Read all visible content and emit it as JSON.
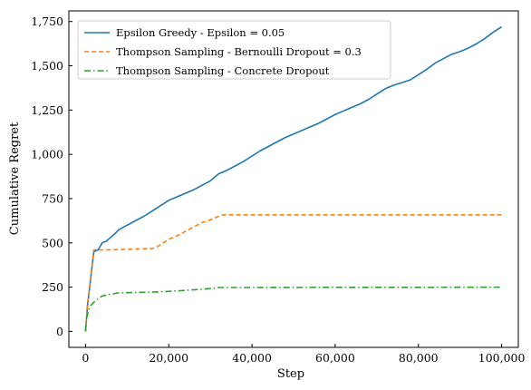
{
  "chart_data": {
    "type": "line",
    "title": "",
    "xlabel": "Step",
    "ylabel": "Cumulative Regret",
    "xlim": [
      -4000,
      104000
    ],
    "ylim": [
      -90,
      1810
    ],
    "xticks": [
      0,
      20000,
      40000,
      60000,
      80000,
      100000
    ],
    "xtick_labels": [
      "0",
      "20,000",
      "40,000",
      "60,000",
      "80,000",
      "100,000"
    ],
    "yticks": [
      0,
      250,
      500,
      750,
      1000,
      1250,
      1500,
      1750
    ],
    "ytick_labels": [
      "0",
      "250",
      "500",
      "750",
      "1,000",
      "1,250",
      "1,500",
      "1,750"
    ],
    "grid": false,
    "legend_position": "top-left",
    "series": [
      {
        "name": "Epsilon Greedy - Epsilon = 0.05",
        "color": "#1f77b4",
        "dash": "solid",
        "x": [
          0,
          500,
          1000,
          2000,
          3000,
          4000,
          5000,
          6000,
          7000,
          8000,
          10000,
          12000,
          14000,
          16000,
          18000,
          20000,
          22000,
          24000,
          26000,
          28000,
          30000,
          32000,
          34000,
          36000,
          38000,
          40000,
          42000,
          44000,
          46000,
          48000,
          50000,
          52000,
          54000,
          56000,
          58000,
          60000,
          62000,
          64000,
          66000,
          68000,
          70000,
          72000,
          74000,
          76000,
          78000,
          80000,
          82000,
          84000,
          86000,
          88000,
          90000,
          92000,
          94000,
          96000,
          98000,
          100000
        ],
        "y": [
          0,
          150,
          250,
          450,
          460,
          500,
          510,
          530,
          550,
          575,
          600,
          625,
          650,
          680,
          710,
          740,
          760,
          780,
          800,
          825,
          850,
          890,
          910,
          935,
          960,
          990,
          1020,
          1045,
          1070,
          1095,
          1115,
          1135,
          1155,
          1175,
          1200,
          1225,
          1245,
          1265,
          1285,
          1310,
          1340,
          1370,
          1390,
          1405,
          1420,
          1450,
          1480,
          1515,
          1540,
          1565,
          1580,
          1600,
          1625,
          1655,
          1690,
          1720
        ]
      },
      {
        "name": "Thompson Sampling - Bernoulli Dropout = 0.3",
        "color": "#ff7f0e",
        "dash": "dashed",
        "x": [
          0,
          500,
          1000,
          2000,
          4000,
          8000,
          12000,
          16000,
          17000,
          18000,
          20000,
          22000,
          24000,
          26000,
          28000,
          30000,
          32000,
          33000,
          40000,
          60000,
          80000,
          100000
        ],
        "y": [
          0,
          160,
          260,
          460,
          460,
          462,
          465,
          468,
          475,
          490,
          520,
          540,
          565,
          590,
          615,
          630,
          650,
          658,
          658,
          658,
          658,
          658
        ]
      },
      {
        "name": "Thompson Sampling - Concrete Dropout",
        "color": "#2ca02c",
        "dash": "dashdot",
        "x": [
          0,
          300,
          1000,
          2000,
          3000,
          4000,
          6000,
          8000,
          12000,
          16000,
          20000,
          24000,
          28000,
          30000,
          32000,
          36000,
          40000,
          60000,
          80000,
          100000
        ],
        "y": [
          0,
          80,
          140,
          165,
          185,
          200,
          210,
          218,
          220,
          222,
          226,
          232,
          238,
          242,
          248,
          248,
          248,
          249,
          249,
          250
        ]
      }
    ]
  }
}
